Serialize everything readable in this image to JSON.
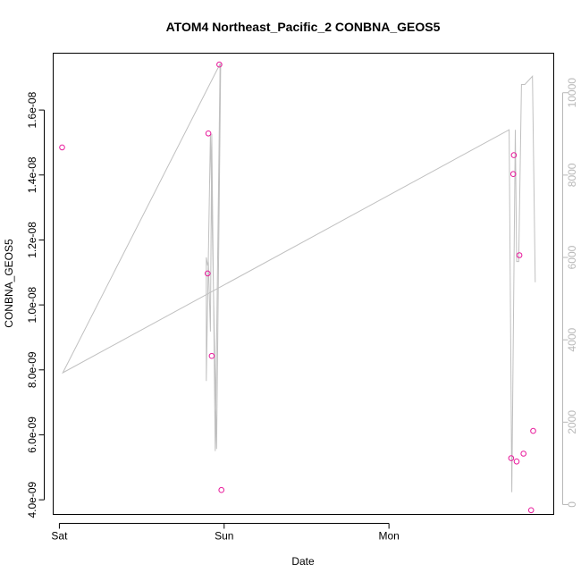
{
  "chart_data": {
    "type": "scatter",
    "title": "ATOM4 Northeast_Pacific_2 CONBNA_GEOS5",
    "xlabel": "Date",
    "ylabel": "CONBNA_GEOS5",
    "x_unit": "hours since Sat 00:00",
    "xlim": [
      -0.9,
      72.0
    ],
    "x_ticks": [
      {
        "value": 0,
        "label": "Sat"
      },
      {
        "value": 24,
        "label": "Sun"
      },
      {
        "value": 48,
        "label": "Mon"
      }
    ],
    "ylim": [
      3.55e-09,
      1.775e-08
    ],
    "y_ticks": [
      {
        "value": 4e-09,
        "label": "4.0e-09"
      },
      {
        "value": 6e-09,
        "label": "6.0e-09"
      },
      {
        "value": 8e-09,
        "label": "8.0e-09"
      },
      {
        "value": 1e-08,
        "label": "1.0e-08"
      },
      {
        "value": 1.2e-08,
        "label": "1.2e-08"
      },
      {
        "value": 1.4e-08,
        "label": "1.4e-08"
      },
      {
        "value": 1.6e-08,
        "label": "1.6e-08"
      }
    ],
    "y2lim": [
      -240,
      10960
    ],
    "y2_ticks": [
      {
        "value": 0,
        "label": "0"
      },
      {
        "value": 2000,
        "label": "2000"
      },
      {
        "value": 4000,
        "label": "4000"
      },
      {
        "value": 6000,
        "label": "6000"
      },
      {
        "value": 8000,
        "label": "8000"
      },
      {
        "value": 10000,
        "label": "10000"
      }
    ],
    "series": [
      {
        "kind": "points",
        "axis": "left",
        "color": "#e8199b",
        "x": [
          0.4,
          21.6,
          21.7,
          22.2,
          23.3,
          23.6,
          65.8,
          66.1,
          66.2,
          66.6,
          67.0,
          67.6,
          68.7,
          69.0
        ],
        "y": [
          1.485e-08,
          1.097e-08,
          1.528e-08,
          8.43e-09,
          1.74e-08,
          4.3e-09,
          5.28e-09,
          1.403e-08,
          1.461e-08,
          5.18e-09,
          1.153e-08,
          5.42e-09,
          3.68e-09,
          6.12e-09
        ]
      },
      {
        "kind": "line",
        "axis": "right",
        "color": "#c0c0c0",
        "x": [
          0.5,
          23.4,
          23.5,
          22.9,
          22.0,
          21.4,
          21.4,
          21.6,
          21.7,
          22.0,
          22.2,
          22.7,
          23.4,
          0.5,
          65.5,
          65.9,
          66.4,
          66.6,
          66.9,
          67.3,
          67.8,
          68.9,
          69.3
        ],
        "y": [
          3200,
          10700,
          10700,
          1350,
          9000,
          3000,
          6000,
          5800,
          5900,
          4200,
          9000,
          1300,
          10700,
          3200,
          9100,
          300,
          9100,
          5900,
          5900,
          10200,
          10200,
          10400,
          5400
        ]
      }
    ]
  }
}
